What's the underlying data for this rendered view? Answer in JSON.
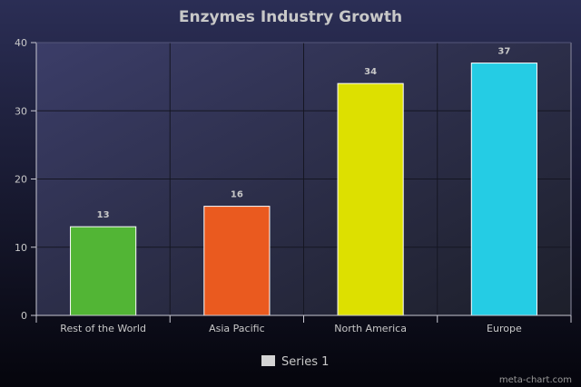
{
  "chart_data": {
    "type": "bar",
    "title": "Enzymes Industry Growth",
    "categories": [
      "Rest of the World",
      "Asia Pacific",
      "North America",
      "Europe"
    ],
    "series": [
      {
        "name": "Series 1",
        "values": [
          13,
          16,
          34,
          37
        ]
      }
    ],
    "bar_colors": [
      "#52b535",
      "#ea5a1f",
      "#dde000",
      "#25cce4"
    ],
    "data_labels": [
      "13",
      "16",
      "34",
      "37"
    ],
    "ylim": [
      0,
      40
    ],
    "yticks": [
      0,
      10,
      20,
      30,
      40
    ],
    "grid": true,
    "legend_position": "bottom-center",
    "xlabel": "",
    "ylabel": ""
  },
  "watermark": "meta-chart.com",
  "colors": {
    "background_top": "#2b2e55",
    "background_bottom": "#05050c",
    "plot_top": "#3b3d68",
    "plot_bottom": "#1d1f2a",
    "axis": "#c8c8d2",
    "text": "#c8c8c8",
    "legend_swatch": "#d4d4d4"
  }
}
